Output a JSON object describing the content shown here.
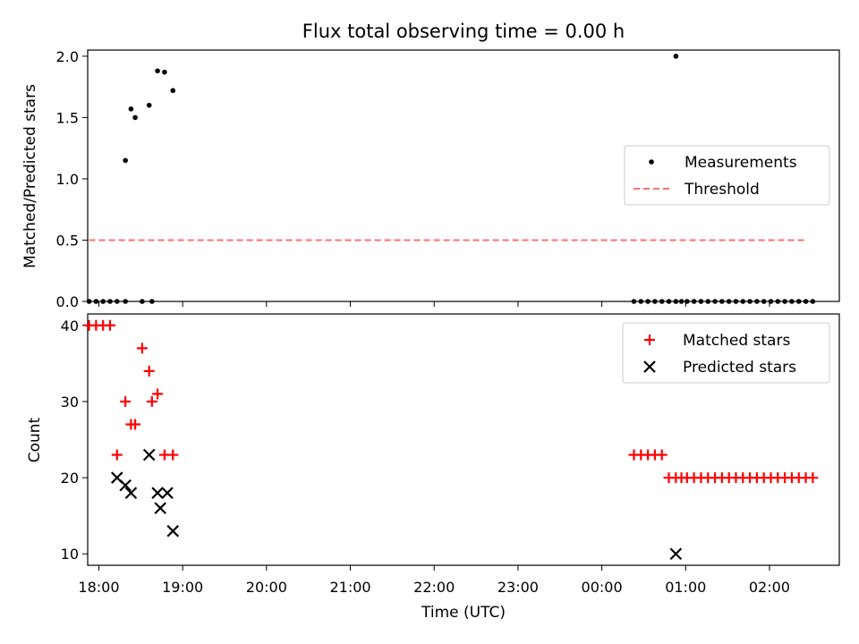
{
  "title": "Flux total observing time = 0.00 h",
  "xlabel": "Time (UTC)",
  "colors": {
    "measurement": "#000000",
    "threshold": "#ff7070",
    "matched": "#ff0000",
    "predicted": "#000000"
  },
  "chart_data": [
    {
      "type": "scatter",
      "ylabel": "Matched/Predicted stars",
      "xlim": [
        "17:52",
        "02:50"
      ],
      "ylim": [
        0,
        2.05
      ],
      "yticks": [
        "0.0",
        "0.5",
        "1.0",
        "1.5",
        "2.0"
      ],
      "legend_position": "center-right",
      "series": [
        {
          "name": "Measurements",
          "x": [
            "17:53",
            "17:58",
            "18:03",
            "18:08",
            "18:13",
            "18:19",
            "18:19",
            "18:23",
            "18:26",
            "18:31",
            "18:36",
            "18:38",
            "18:42",
            "18:47",
            "18:53",
            "00:23",
            "00:28",
            "00:33",
            "00:38",
            "00:43",
            "00:48",
            "00:53",
            "00:53",
            "00:57",
            "01:01",
            "01:06",
            "01:11",
            "01:16",
            "01:21",
            "01:26",
            "01:31",
            "01:36",
            "01:41",
            "01:46",
            "01:51",
            "01:56",
            "02:01",
            "02:06",
            "02:11",
            "02:16",
            "02:21",
            "02:26",
            "02:31"
          ],
          "y": [
            0,
            0,
            0,
            0,
            0,
            0,
            1.15,
            1.57,
            1.5,
            0,
            1.6,
            0,
            1.88,
            1.87,
            1.72,
            0,
            0,
            0,
            0,
            0,
            0,
            0,
            2.0,
            0,
            0,
            0,
            0,
            0,
            0,
            0,
            0,
            0,
            0,
            0,
            0,
            0,
            0,
            0,
            0,
            0,
            0,
            0,
            0
          ]
        },
        {
          "name": "Threshold",
          "x": [
            "17:53",
            "02:26"
          ],
          "y": [
            0.5,
            0.5
          ]
        }
      ]
    },
    {
      "type": "scatter",
      "ylabel": "Count",
      "xlim": [
        "17:52",
        "02:50"
      ],
      "ylim": [
        8.5,
        41.5
      ],
      "yticks": [
        "10",
        "20",
        "30",
        "40"
      ],
      "xticks": [
        "18:00",
        "19:00",
        "20:00",
        "21:00",
        "22:00",
        "23:00",
        "00:00",
        "01:00",
        "02:00"
      ],
      "legend_position": "top-right",
      "series": [
        {
          "name": "Matched stars",
          "x": [
            "17:53",
            "17:58",
            "18:03",
            "18:08",
            "18:13",
            "18:19",
            "18:23",
            "18:26",
            "18:31",
            "18:36",
            "18:38",
            "18:42",
            "18:47",
            "18:53",
            "00:23",
            "00:28",
            "00:33",
            "00:38",
            "00:43",
            "00:48",
            "00:53",
            "00:57",
            "01:01",
            "01:06",
            "01:11",
            "01:16",
            "01:21",
            "01:26",
            "01:31",
            "01:36",
            "01:41",
            "01:46",
            "01:51",
            "01:56",
            "02:01",
            "02:06",
            "02:11",
            "02:16",
            "02:21",
            "02:26",
            "02:31"
          ],
          "y": [
            40,
            40,
            40,
            40,
            23,
            30,
            27,
            27,
            37,
            34,
            30,
            31,
            23,
            23,
            23,
            23,
            23,
            23,
            23,
            20,
            20,
            20,
            20,
            20,
            20,
            20,
            20,
            20,
            20,
            20,
            20,
            20,
            20,
            20,
            20,
            20,
            20,
            20,
            20,
            20,
            20
          ]
        },
        {
          "name": "Predicted stars",
          "x": [
            "18:13",
            "18:19",
            "18:23",
            "18:36",
            "18:42",
            "18:44",
            "18:49",
            "18:53",
            "00:53"
          ],
          "y": [
            20,
            19,
            18,
            23,
            18,
            16,
            18,
            13,
            10
          ]
        }
      ]
    }
  ]
}
